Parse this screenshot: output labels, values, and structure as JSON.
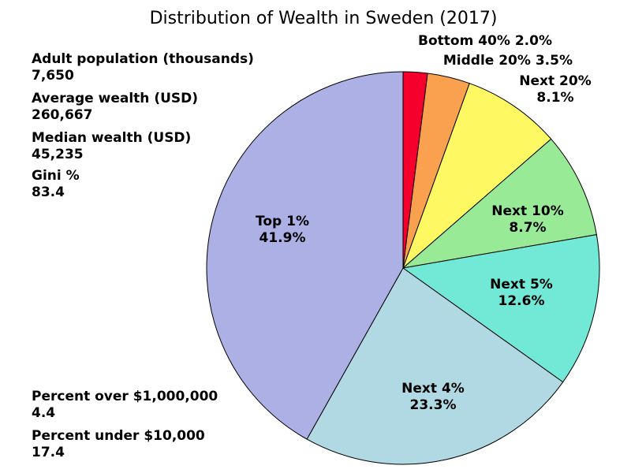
{
  "chart_data": {
    "type": "pie",
    "title": "Distribution of Wealth in Sweden (2017)",
    "series": [
      {
        "values": [
          2.0,
          3.5,
          8.1,
          8.7,
          12.6,
          23.3,
          41.9
        ],
        "labels": [
          "Bottom 40%",
          "Middle 20%",
          "Next 20%",
          "Next 10%",
          "Next 5%",
          "Next 4%",
          "Top 1%"
        ],
        "value_labels": [
          "2.0%",
          "3.5%",
          "8.1%",
          "8.7%",
          "12.6%",
          "23.3%",
          "41.9%"
        ],
        "colors": [
          "#f5002c",
          "#f9a14f",
          "#fef962",
          "#98ea97",
          "#72e9d6",
          "#b1d9e4",
          "#adb0e5"
        ]
      }
    ],
    "start_angle_deg": 90,
    "direction": "clockwise",
    "edge_color": "#000000"
  },
  "stats_top": [
    {
      "label": "Adult population (thousands)",
      "value": "7,650"
    },
    {
      "label": "Average wealth (USD)",
      "value": "260,667"
    },
    {
      "label": "Median wealth (USD)",
      "value": "45,235"
    },
    {
      "label": "Gini %",
      "value": "83.4"
    }
  ],
  "stats_bottom": [
    {
      "label": "Percent over $1,000,000",
      "value": "4.4"
    },
    {
      "label": "Percent under $10,000",
      "value": "17.4"
    }
  ]
}
